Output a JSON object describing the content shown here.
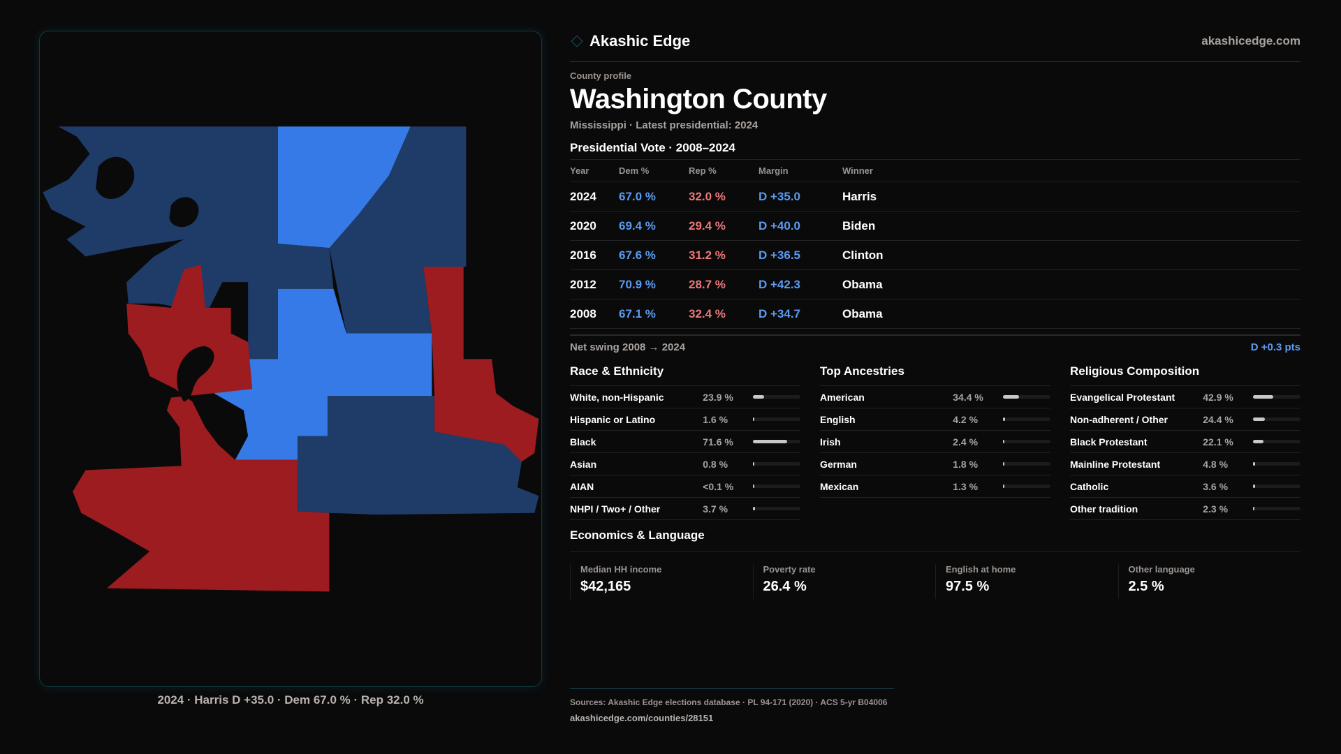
{
  "brand": {
    "name": "Akashic Edge",
    "site": "akashicedge.com"
  },
  "profile": {
    "kicker": "County profile",
    "title": "Washington County",
    "subtitle": "Mississippi · Latest presidential: 2024"
  },
  "vote": {
    "heading": "Presidential Vote · 2008–2024",
    "columns": [
      "Year",
      "Dem %",
      "Rep %",
      "Margin",
      "Winner"
    ],
    "rows": [
      {
        "year": "2024",
        "dem": "67.0 %",
        "rep": "32.0 %",
        "margin": "D +35.0",
        "winner": "Harris"
      },
      {
        "year": "2020",
        "dem": "69.4 %",
        "rep": "29.4 %",
        "margin": "D +40.0",
        "winner": "Biden"
      },
      {
        "year": "2016",
        "dem": "67.6 %",
        "rep": "31.2 %",
        "margin": "D +36.5",
        "winner": "Clinton"
      },
      {
        "year": "2012",
        "dem": "70.9 %",
        "rep": "28.7 %",
        "margin": "D +42.3",
        "winner": "Obama"
      },
      {
        "year": "2008",
        "dem": "67.1 %",
        "rep": "32.4 %",
        "margin": "D +34.7",
        "winner": "Obama"
      }
    ],
    "swing_label": "Net swing 2008 → 2024",
    "swing_value": "D +0.3 pts"
  },
  "groups": [
    {
      "title": "Race & Ethnicity",
      "items": [
        {
          "label": "White, non-Hispanic",
          "value": "23.9 %",
          "pct": 23.9
        },
        {
          "label": "Hispanic or Latino",
          "value": "1.6 %",
          "pct": 1.6
        },
        {
          "label": "Black",
          "value": "71.6 %",
          "pct": 71.6
        },
        {
          "label": "Asian",
          "value": "0.8 %",
          "pct": 0.8
        },
        {
          "label": "AIAN",
          "value": "<0.1 %",
          "pct": 0.05
        },
        {
          "label": "NHPI / Two+ / Other",
          "value": "3.7 %",
          "pct": 3.7
        }
      ]
    },
    {
      "title": "Top Ancestries",
      "items": [
        {
          "label": "American",
          "value": "34.4 %",
          "pct": 34.4
        },
        {
          "label": "English",
          "value": "4.2 %",
          "pct": 4.2
        },
        {
          "label": "Irish",
          "value": "2.4 %",
          "pct": 2.4
        },
        {
          "label": "German",
          "value": "1.8 %",
          "pct": 1.8
        },
        {
          "label": "Mexican",
          "value": "1.3 %",
          "pct": 1.3
        }
      ]
    },
    {
      "title": "Religious Composition",
      "items": [
        {
          "label": "Evangelical Protestant",
          "value": "42.9 %",
          "pct": 42.9
        },
        {
          "label": "Non-adherent / Other",
          "value": "24.4 %",
          "pct": 24.4
        },
        {
          "label": "Black Protestant",
          "value": "22.1 %",
          "pct": 22.1
        },
        {
          "label": "Mainline Protestant",
          "value": "4.8 %",
          "pct": 4.8
        },
        {
          "label": "Catholic",
          "value": "3.6 %",
          "pct": 3.6
        },
        {
          "label": "Other tradition",
          "value": "2.3 %",
          "pct": 2.3
        }
      ]
    }
  ],
  "economics": {
    "heading": "Economics & Language",
    "stats": [
      {
        "label": "Median HH income",
        "value": "$42,165"
      },
      {
        "label": "Poverty rate",
        "value": "26.4 %"
      },
      {
        "label": "English at home",
        "value": "97.5 %"
      },
      {
        "label": "Other language",
        "value": "2.5 %"
      }
    ]
  },
  "map": {
    "caption": "2024 · Harris D +35.0 · Dem 67.0 % · Rep 32.0 %",
    "colors": {
      "strong_dem": "#1f3b68",
      "lean_dem": "#357ae6",
      "rep": "#9c1c1f"
    }
  },
  "footer": {
    "sources": "Sources: Akashic Edge elections database · PL 94-171 (2020) · ACS 5-yr B04006",
    "url": "akashicedge.com/counties/28151"
  }
}
